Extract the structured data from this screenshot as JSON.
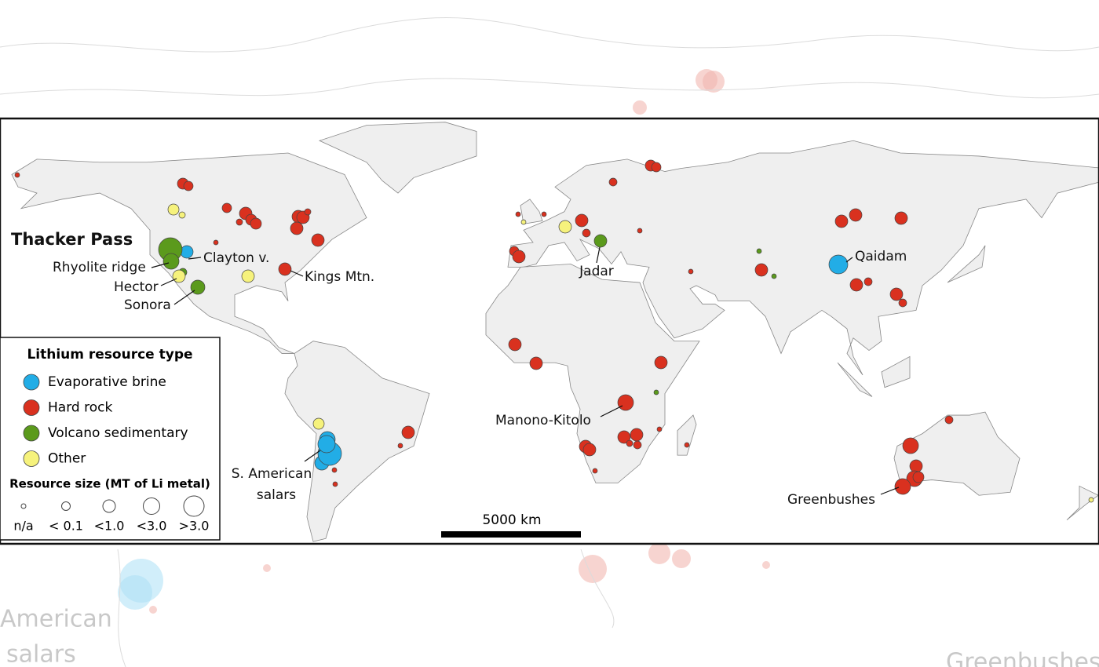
{
  "map": {
    "labels": [
      "Thacker Pass",
      "Clayton v.",
      "Rhyolite ridge",
      "Hector",
      "Sonora",
      "Kings Mtn.",
      "Jadar",
      "Qaidam",
      "Manono-Kitolo",
      "S. American",
      "salars",
      "Greenbushes"
    ],
    "legend": {
      "title": "Lithium resource type",
      "types": [
        {
          "label": "Evaporative brine",
          "color": "#22ade6"
        },
        {
          "label": "Hard rock",
          "color": "#d9311f"
        },
        {
          "label": "Volcano sedimentary",
          "color": "#5b9a1c"
        },
        {
          "label": "Other",
          "color": "#f6f27c"
        }
      ],
      "size_title": "Resource size (MT of Li metal)",
      "sizes": [
        "n/a",
        "< 0.1",
        "<1.0",
        "<3.0",
        ">3.0"
      ]
    },
    "scale_bar": "5000 km",
    "ghost_labels": [
      "American",
      "salars",
      "Greenbushes"
    ]
  }
}
